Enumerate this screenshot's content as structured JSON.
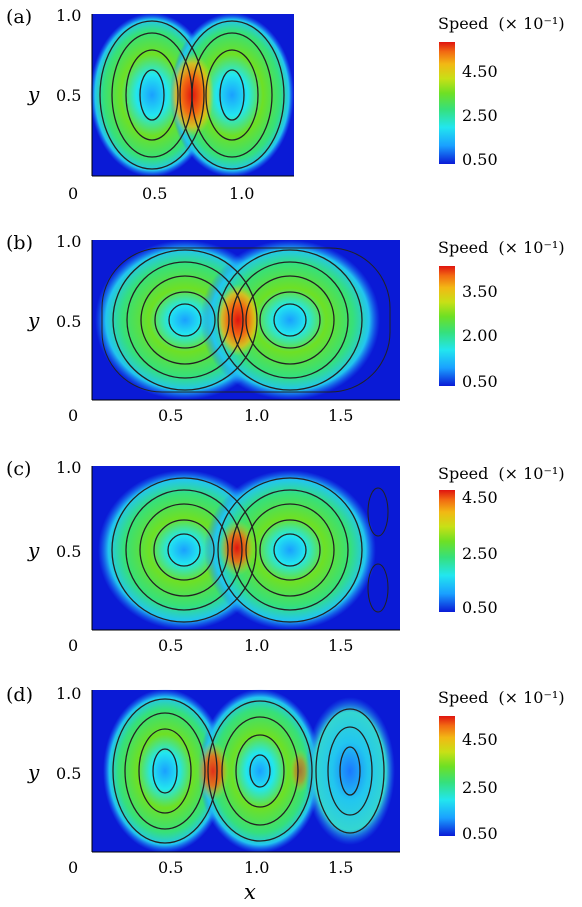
{
  "panels": [
    {
      "label": "(a)",
      "y_label": "y",
      "y_ticks": [
        "1.0",
        "0.5"
      ],
      "x_ticks": [
        "0",
        "0.5",
        "1.0"
      ],
      "colorbar": {
        "title": "Speed",
        "multiplier": "(× 10⁻¹)",
        "ticks": [
          "4.50",
          "2.50",
          "0.50"
        ]
      }
    },
    {
      "label": "(b)",
      "y_label": "y",
      "y_ticks": [
        "1.0",
        "0.5"
      ],
      "x_ticks": [
        "0",
        "0.5",
        "1.0",
        "1.5"
      ],
      "colorbar": {
        "title": "Speed",
        "multiplier": "(× 10⁻¹)",
        "ticks": [
          "3.50",
          "2.00",
          "0.50"
        ]
      }
    },
    {
      "label": "(c)",
      "y_label": "y",
      "y_ticks": [
        "1.0",
        "0.5"
      ],
      "x_ticks": [
        "0",
        "0.5",
        "1.0",
        "1.5"
      ],
      "colorbar": {
        "title": "Speed",
        "multiplier": "(× 10⁻¹)",
        "ticks": [
          "4.50",
          "2.50",
          "0.50"
        ]
      }
    },
    {
      "label": "(d)",
      "y_label": "y",
      "y_ticks": [
        "1.0",
        "0.5"
      ],
      "x_ticks": [
        "0",
        "0.5",
        "1.0",
        "1.5"
      ],
      "colorbar": {
        "title": "Speed",
        "multiplier": "(× 10⁻¹)",
        "ticks": [
          "4.50",
          "2.50",
          "0.50"
        ]
      }
    }
  ],
  "x_axis_label": "x",
  "colors": {
    "background": "#0a1ad6",
    "low": "#1aa0ff",
    "mid": "#36e07a",
    "high": "#e01410"
  }
}
